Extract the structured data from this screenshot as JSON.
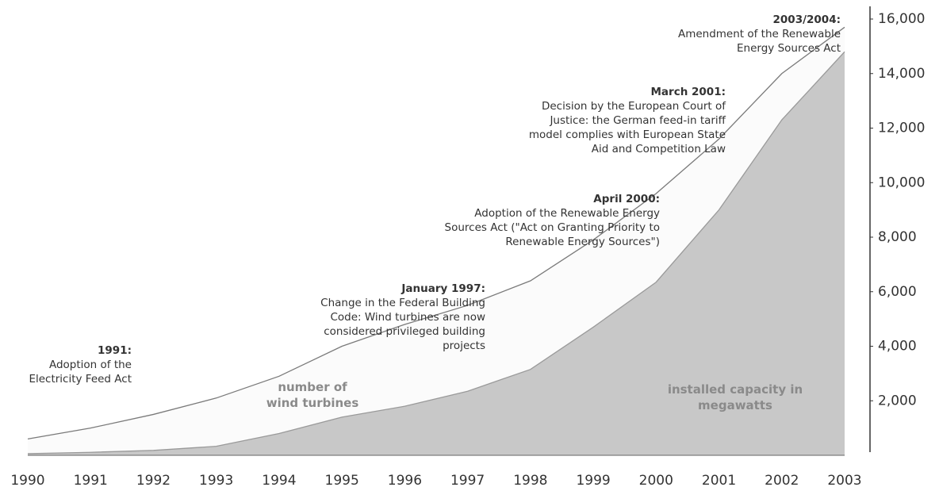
{
  "chart_data": {
    "type": "area",
    "x": [
      1990,
      1991,
      1992,
      1993,
      1994,
      1995,
      1996,
      1997,
      1998,
      1999,
      2000,
      2001,
      2002,
      2003
    ],
    "xlim": [
      1990,
      2003
    ],
    "series": [
      {
        "name": "number of wind turbines",
        "color": "#fbfbfb",
        "stroke": "#7a7a7a",
        "values": [
          600,
          1000,
          1500,
          2100,
          2900,
          4000,
          4800,
          5500,
          6400,
          7900,
          9600,
          11600,
          14000,
          15700
        ]
      },
      {
        "name": "installed capacity in megawatts",
        "color": "#c8c8c8",
        "stroke": "#9a9a9a",
        "values": [
          60,
          110,
          180,
          330,
          800,
          1400,
          1800,
          2350,
          3150,
          4700,
          6350,
          9000,
          12300,
          14800
        ]
      }
    ],
    "ylim": [
      0,
      16000
    ],
    "yticks": [
      {
        "value": 2000,
        "label": "2,000"
      },
      {
        "value": 4000,
        "label": "4,000"
      },
      {
        "value": 6000,
        "label": "6,000"
      },
      {
        "value": 8000,
        "label": "8,000"
      },
      {
        "value": 10000,
        "label": "10,000"
      },
      {
        "value": 12000,
        "label": "12,000"
      },
      {
        "value": 14000,
        "label": "14,000"
      },
      {
        "value": 16000,
        "label": "16,000"
      }
    ],
    "annotations": [
      {
        "title": "1991:",
        "lines": [
          "Adoption of the",
          "Electricity Feed Act"
        ]
      },
      {
        "title": "January 1997:",
        "lines": [
          "Change in the Federal Building",
          "Code: Wind turbines are now",
          "considered privileged building",
          "projects"
        ]
      },
      {
        "title": "April 2000:",
        "lines": [
          "Adoption of the Renewable Energy",
          "Sources Act (\"Act on Granting Priority to",
          "Renewable Energy Sources\")"
        ]
      },
      {
        "title": "March 2001:",
        "lines": [
          "Decision by the European Court of",
          "Justice: the German feed-in tariff",
          "model complies with European State",
          "Aid and Competition Law"
        ]
      },
      {
        "title": "2003/2004:",
        "lines": [
          "Amendment of the Renewable",
          "Energy Sources Act"
        ]
      }
    ]
  }
}
